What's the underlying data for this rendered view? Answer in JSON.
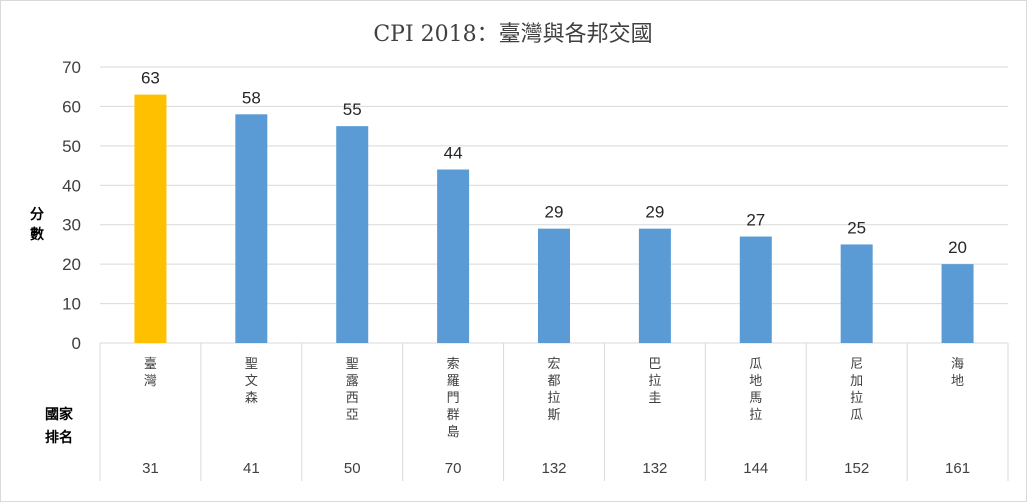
{
  "chart_data": {
    "type": "bar",
    "title": "CPI 2018：臺灣與各邦交國",
    "ylabel": "分數",
    "xlabel": "國家排名",
    "ylim": [
      0,
      70
    ],
    "yticks": [
      0,
      10,
      20,
      30,
      40,
      50,
      60,
      70
    ],
    "grid": true,
    "categories": [
      "臺灣",
      "聖文森",
      "聖露西亞",
      "索羅門群島",
      "宏都拉斯",
      "巴拉圭",
      "瓜地馬拉",
      "尼加拉瓜",
      "海地"
    ],
    "ranks": [
      "31",
      "41",
      "50",
      "70",
      "132",
      "132",
      "144",
      "152",
      "161"
    ],
    "values": [
      63,
      58,
      55,
      44,
      29,
      29,
      27,
      25,
      20
    ],
    "colors": {
      "highlight": "#FFC000",
      "bar": "#5B9BD5",
      "grid": "#D9D9D9"
    },
    "highlight_index": 0
  }
}
